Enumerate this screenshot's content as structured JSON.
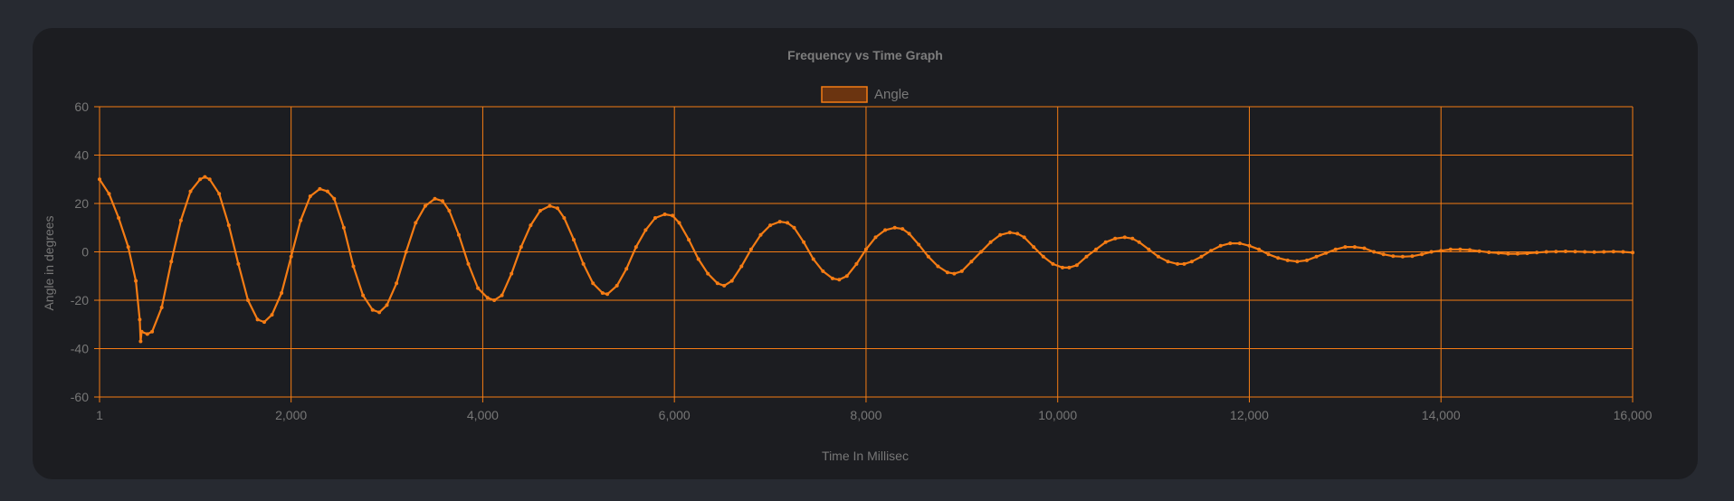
{
  "chart_data": {
    "type": "line",
    "title": "Frequency vs Time Graph",
    "xlabel": "Time In Millisec",
    "ylabel": "Angle in degrees",
    "xlim": [
      1,
      16000
    ],
    "ylim": [
      -60,
      60
    ],
    "x_ticks": [
      "1",
      "2,000",
      "4,000",
      "6,000",
      "8,000",
      "10,000",
      "12,000",
      "14,000",
      "16,000"
    ],
    "y_ticks": [
      "60",
      "40",
      "20",
      "0",
      "-20",
      "-40",
      "-60"
    ],
    "legend_position": "top-center",
    "grid": true,
    "series": [
      {
        "name": "Angle",
        "color": "#f57c14",
        "points": [
          [
            1,
            30
          ],
          [
            100,
            24
          ],
          [
            200,
            14
          ],
          [
            300,
            2
          ],
          [
            380,
            -12
          ],
          [
            420,
            -28
          ],
          [
            430,
            -37
          ],
          [
            440,
            -33
          ],
          [
            500,
            -34
          ],
          [
            550,
            -33
          ],
          [
            650,
            -23
          ],
          [
            750,
            -4
          ],
          [
            850,
            13
          ],
          [
            950,
            25
          ],
          [
            1050,
            30
          ],
          [
            1100,
            31
          ],
          [
            1150,
            30
          ],
          [
            1250,
            24
          ],
          [
            1350,
            11
          ],
          [
            1450,
            -5
          ],
          [
            1550,
            -20
          ],
          [
            1650,
            -28
          ],
          [
            1720,
            -29
          ],
          [
            1800,
            -26
          ],
          [
            1900,
            -17
          ],
          [
            2000,
            -2
          ],
          [
            2100,
            13
          ],
          [
            2200,
            23
          ],
          [
            2300,
            26
          ],
          [
            2380,
            25
          ],
          [
            2450,
            22
          ],
          [
            2550,
            10
          ],
          [
            2650,
            -6
          ],
          [
            2750,
            -18
          ],
          [
            2850,
            -24
          ],
          [
            2920,
            -25
          ],
          [
            3000,
            -22
          ],
          [
            3100,
            -13
          ],
          [
            3200,
            0
          ],
          [
            3300,
            12
          ],
          [
            3400,
            19
          ],
          [
            3500,
            22
          ],
          [
            3580,
            21
          ],
          [
            3650,
            17
          ],
          [
            3750,
            7
          ],
          [
            3850,
            -5
          ],
          [
            3950,
            -15
          ],
          [
            4050,
            -19
          ],
          [
            4120,
            -20
          ],
          [
            4200,
            -18
          ],
          [
            4300,
            -9
          ],
          [
            4400,
            2
          ],
          [
            4500,
            11
          ],
          [
            4600,
            17
          ],
          [
            4700,
            19
          ],
          [
            4780,
            18
          ],
          [
            4850,
            14
          ],
          [
            4950,
            5
          ],
          [
            5050,
            -5
          ],
          [
            5150,
            -13
          ],
          [
            5250,
            -17
          ],
          [
            5300,
            -17.5
          ],
          [
            5400,
            -14
          ],
          [
            5500,
            -7
          ],
          [
            5600,
            2
          ],
          [
            5700,
            9
          ],
          [
            5800,
            14
          ],
          [
            5900,
            15.5
          ],
          [
            5980,
            15
          ],
          [
            6050,
            12
          ],
          [
            6150,
            5
          ],
          [
            6250,
            -3
          ],
          [
            6350,
            -9
          ],
          [
            6450,
            -13
          ],
          [
            6520,
            -14
          ],
          [
            6600,
            -12
          ],
          [
            6700,
            -6
          ],
          [
            6800,
            1
          ],
          [
            6900,
            7
          ],
          [
            7000,
            11
          ],
          [
            7100,
            12.5
          ],
          [
            7180,
            12
          ],
          [
            7250,
            10
          ],
          [
            7350,
            4
          ],
          [
            7450,
            -3
          ],
          [
            7550,
            -8
          ],
          [
            7650,
            -11
          ],
          [
            7720,
            -11.5
          ],
          [
            7800,
            -10
          ],
          [
            7900,
            -5
          ],
          [
            8000,
            1
          ],
          [
            8100,
            6
          ],
          [
            8200,
            9
          ],
          [
            8300,
            10
          ],
          [
            8380,
            9.5
          ],
          [
            8450,
            7.5
          ],
          [
            8550,
            3
          ],
          [
            8650,
            -2
          ],
          [
            8750,
            -6
          ],
          [
            8850,
            -8.5
          ],
          [
            8920,
            -9
          ],
          [
            9000,
            -8
          ],
          [
            9100,
            -4
          ],
          [
            9200,
            0
          ],
          [
            9300,
            4
          ],
          [
            9400,
            7
          ],
          [
            9500,
            8
          ],
          [
            9580,
            7.5
          ],
          [
            9650,
            6
          ],
          [
            9750,
            2
          ],
          [
            9850,
            -2
          ],
          [
            9950,
            -5
          ],
          [
            10050,
            -6.5
          ],
          [
            10120,
            -6.5
          ],
          [
            10200,
            -5.5
          ],
          [
            10300,
            -2
          ],
          [
            10400,
            1
          ],
          [
            10500,
            4
          ],
          [
            10600,
            5.5
          ],
          [
            10700,
            6
          ],
          [
            10780,
            5.5
          ],
          [
            10850,
            4
          ],
          [
            10950,
            1
          ],
          [
            11050,
            -2
          ],
          [
            11150,
            -4
          ],
          [
            11250,
            -5
          ],
          [
            11320,
            -5
          ],
          [
            11400,
            -4
          ],
          [
            11500,
            -2
          ],
          [
            11600,
            0.5
          ],
          [
            11700,
            2.5
          ],
          [
            11800,
            3.5
          ],
          [
            11900,
            3.5
          ],
          [
            12000,
            2.5
          ],
          [
            12100,
            1
          ],
          [
            12200,
            -1
          ],
          [
            12300,
            -2.5
          ],
          [
            12400,
            -3.5
          ],
          [
            12500,
            -4
          ],
          [
            12600,
            -3.5
          ],
          [
            12700,
            -2
          ],
          [
            12800,
            -0.5
          ],
          [
            12900,
            1
          ],
          [
            13000,
            2
          ],
          [
            13100,
            2
          ],
          [
            13200,
            1.5
          ],
          [
            13300,
            0
          ],
          [
            13400,
            -1
          ],
          [
            13500,
            -1.8
          ],
          [
            13600,
            -2
          ],
          [
            13700,
            -1.8
          ],
          [
            13800,
            -1
          ],
          [
            13900,
            0
          ],
          [
            14000,
            0.5
          ],
          [
            14100,
            1
          ],
          [
            14200,
            1
          ],
          [
            14300,
            0.8
          ],
          [
            14400,
            0.3
          ],
          [
            14500,
            -0.2
          ],
          [
            14600,
            -0.5
          ],
          [
            14700,
            -0.8
          ],
          [
            14800,
            -0.8
          ],
          [
            14900,
            -0.6
          ],
          [
            15000,
            -0.3
          ],
          [
            15100,
            0
          ],
          [
            15200,
            0.1
          ],
          [
            15300,
            0.2
          ],
          [
            15400,
            0.1
          ],
          [
            15500,
            0
          ],
          [
            15600,
            -0.1
          ],
          [
            15700,
            0
          ],
          [
            15800,
            0.1
          ],
          [
            15900,
            0
          ],
          [
            16000,
            -0.3
          ]
        ]
      }
    ]
  }
}
